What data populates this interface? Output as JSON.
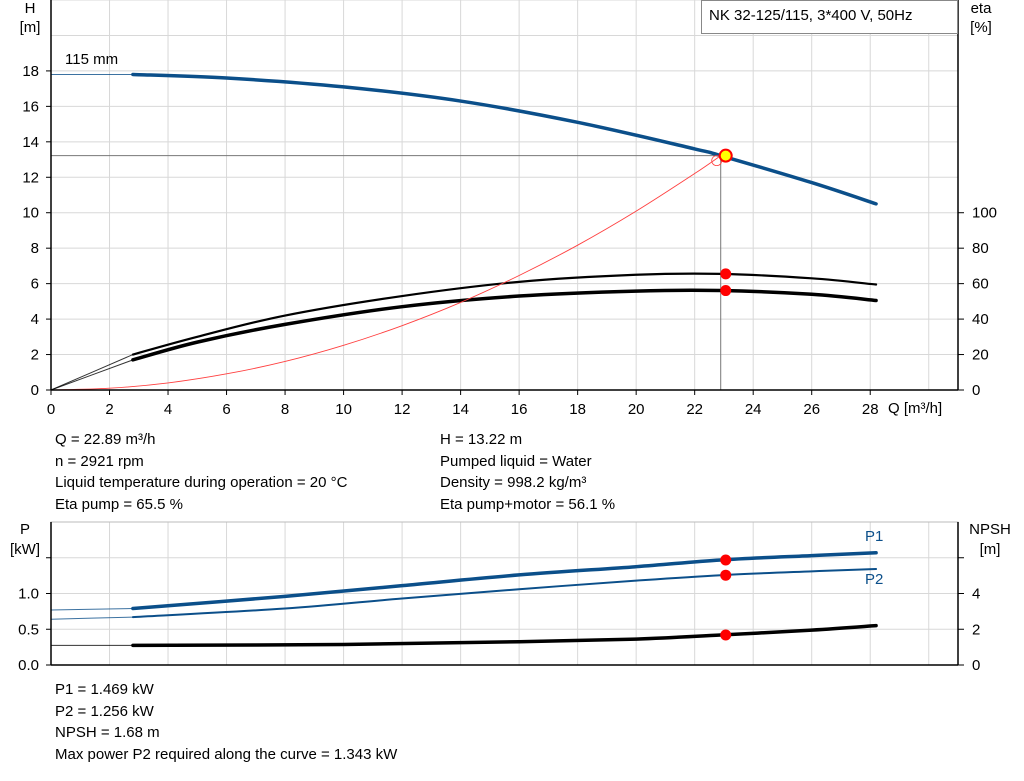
{
  "colors": {
    "head": "#0b4f8a",
    "power": "#0b4f8a",
    "eta": "#000000",
    "system": "#ff4040",
    "marker": "#ff0000",
    "operating_point_fill": "#ffff00",
    "grid": "#d8d8d8"
  },
  "chart_data": [
    {
      "type": "line",
      "title": "NK 32-125/115, 3*400 V, 50Hz",
      "curve_label": "115 mm",
      "xlabel": "Q [m³/h]",
      "ylabel_left": [
        "H",
        "[m]"
      ],
      "ylabel_right": [
        "eta",
        "[%]"
      ],
      "xlim": [
        0,
        31
      ],
      "ylim_left": [
        0,
        22
      ],
      "ylim_right": [
        0,
        220
      ],
      "xticks": [
        "0",
        "2",
        "4",
        "6",
        "8",
        "10",
        "12",
        "14",
        "16",
        "18",
        "20",
        "22",
        "24",
        "26",
        "28"
      ],
      "yticks_left": [
        "0",
        "2",
        "4",
        "6",
        "8",
        "10",
        "12",
        "14",
        "16",
        "18"
      ],
      "yticks_right": [
        "0",
        "20",
        "40",
        "60",
        "80",
        "100"
      ],
      "grid": true,
      "operating_point": {
        "Q": 22.89,
        "H": 13.22,
        "eta_pump": 65.5,
        "eta_pump_motor": 56.1
      },
      "series": [
        {
          "key": "H",
          "axis": "left",
          "extrapolated": [
            [
              0,
              17.8
            ],
            [
              2.8,
              17.8
            ]
          ],
          "points": [
            [
              2.8,
              17.8
            ],
            [
              6,
              17.6
            ],
            [
              10,
              17.1
            ],
            [
              14,
              16.3
            ],
            [
              18,
              15.1
            ],
            [
              22,
              13.6
            ],
            [
              22.89,
              13.22
            ],
            [
              26,
              11.7
            ],
            [
              28.2,
              10.5
            ]
          ]
        },
        {
          "key": "eta_pump",
          "axis": "right",
          "extrapolated": [
            [
              0,
              0
            ],
            [
              2.8,
              20
            ]
          ],
          "points": [
            [
              2.8,
              20
            ],
            [
              5,
              30
            ],
            [
              8,
              42
            ],
            [
              12,
              53
            ],
            [
              16,
              61
            ],
            [
              20,
              65
            ],
            [
              22.89,
              65.5
            ],
            [
              26,
              63
            ],
            [
              28.2,
              59.5
            ]
          ]
        },
        {
          "key": "eta_pump_motor",
          "axis": "right",
          "extrapolated": [
            [
              0,
              0
            ],
            [
              2.8,
              17
            ]
          ],
          "points": [
            [
              2.8,
              17
            ],
            [
              5,
              27
            ],
            [
              8,
              37
            ],
            [
              12,
              47
            ],
            [
              16,
              53
            ],
            [
              20,
              55.8
            ],
            [
              22.89,
              56.1
            ],
            [
              26,
              54
            ],
            [
              28.2,
              50.5
            ]
          ]
        },
        {
          "key": "system_curve",
          "axis": "left",
          "points": [
            [
              0,
              0
            ],
            [
              2,
              0.1
            ],
            [
              4,
              0.4
            ],
            [
              6,
              0.91
            ],
            [
              8,
              1.61
            ],
            [
              10,
              2.52
            ],
            [
              12,
              3.63
            ],
            [
              14,
              4.94
            ],
            [
              16,
              6.46
            ],
            [
              18,
              8.17
            ],
            [
              20,
              10.09
            ],
            [
              22,
              12.21
            ],
            [
              22.89,
              13.22
            ]
          ]
        }
      ]
    },
    {
      "type": "line",
      "xlabel": "",
      "ylabel_left": [
        "P",
        "[kW]"
      ],
      "ylabel_right": [
        "NPSH",
        "[m]"
      ],
      "xlim": [
        0,
        31
      ],
      "ylim_left": [
        0,
        2.0
      ],
      "ylim_right": [
        0,
        8
      ],
      "yticks_left": [
        "0.0",
        "0.5",
        "1.0"
      ],
      "yticks_right": [
        "0",
        "2",
        "4"
      ],
      "grid": true,
      "series": [
        {
          "key": "P1",
          "name": "P1",
          "axis": "left",
          "extrapolated": [
            [
              0,
              0.77
            ],
            [
              2.8,
              0.79
            ]
          ],
          "points": [
            [
              2.8,
              0.79
            ],
            [
              8,
              0.96
            ],
            [
              12,
              1.11
            ],
            [
              16,
              1.26
            ],
            [
              20,
              1.375
            ],
            [
              22.89,
              1.469
            ],
            [
              26,
              1.53
            ],
            [
              28.2,
              1.57
            ]
          ]
        },
        {
          "key": "P2",
          "name": "P2",
          "axis": "left",
          "extrapolated": [
            [
              0,
              0.64
            ],
            [
              2.8,
              0.67
            ]
          ],
          "points": [
            [
              2.8,
              0.67
            ],
            [
              8,
              0.79
            ],
            [
              12,
              0.93
            ],
            [
              16,
              1.06
            ],
            [
              20,
              1.18
            ],
            [
              22.89,
              1.256
            ],
            [
              26,
              1.31
            ],
            [
              28.2,
              1.343
            ]
          ]
        },
        {
          "key": "NPSH",
          "axis": "right",
          "extrapolated": [
            [
              0,
              1.1
            ],
            [
              2.8,
              1.1
            ]
          ],
          "points": [
            [
              2.8,
              1.1
            ],
            [
              10,
              1.15
            ],
            [
              16,
              1.3
            ],
            [
              20,
              1.45
            ],
            [
              22.89,
              1.68
            ],
            [
              26,
              1.95
            ],
            [
              28.2,
              2.2
            ]
          ]
        }
      ],
      "operating_point": {
        "Q": 22.89,
        "P1": 1.469,
        "P2": 1.256,
        "NPSH": 1.68
      }
    }
  ],
  "info_top": {
    "left": [
      "Q = 22.89 m³/h",
      "n = 2921 rpm",
      "Liquid temperature during operation = 20 °C",
      "Eta pump = 65.5 %"
    ],
    "right": [
      "H = 13.22 m",
      "Pumped liquid = Water",
      "Density = 998.2 kg/m³",
      "Eta pump+motor = 56.1 %"
    ]
  },
  "info_bottom": [
    "P1 = 1.469 kW",
    "P2 = 1.256 kW",
    "NPSH = 1.68 m",
    "Max power P2 required along the curve = 1.343 kW"
  ]
}
